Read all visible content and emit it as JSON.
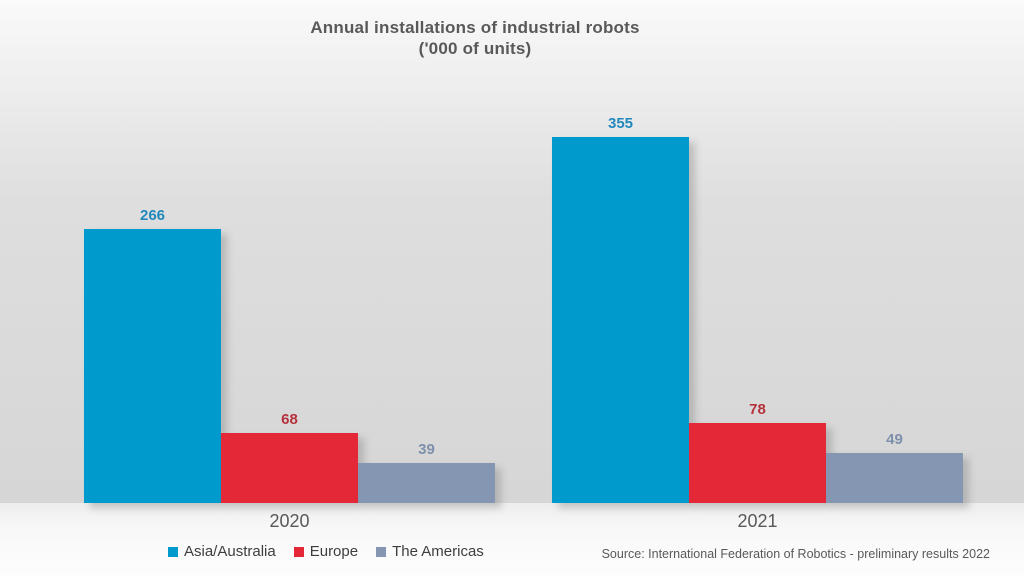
{
  "title": {
    "line1": "Annual installations of industrial robots",
    "line2": "('000 of units)"
  },
  "source": "Source: International Federation of Robotics - preliminary results 2022",
  "colors": {
    "asia_australia": "#009ACD",
    "europe": "#E42837",
    "the_americas": "#8496B2",
    "text_gray": "#595959"
  },
  "chart_data": {
    "type": "bar",
    "title": "Annual installations of industrial robots ('000 of units)",
    "categories": [
      "2020",
      "2021"
    ],
    "series": [
      {
        "name": "Asia/Australia",
        "values": [
          266,
          355
        ],
        "color": "#009ACD",
        "label_color": "#2389BC"
      },
      {
        "name": "Europe",
        "values": [
          68,
          78
        ],
        "color": "#E42837",
        "label_color": "#B5313C"
      },
      {
        "name": "The Americas",
        "values": [
          39,
          49
        ],
        "color": "#8496B2",
        "label_color": "#7E90AC"
      }
    ],
    "xlabel": "",
    "ylabel": "",
    "ylim": [
      0,
      380
    ],
    "grid": false,
    "legend_position": "bottom",
    "data_labels": true
  }
}
